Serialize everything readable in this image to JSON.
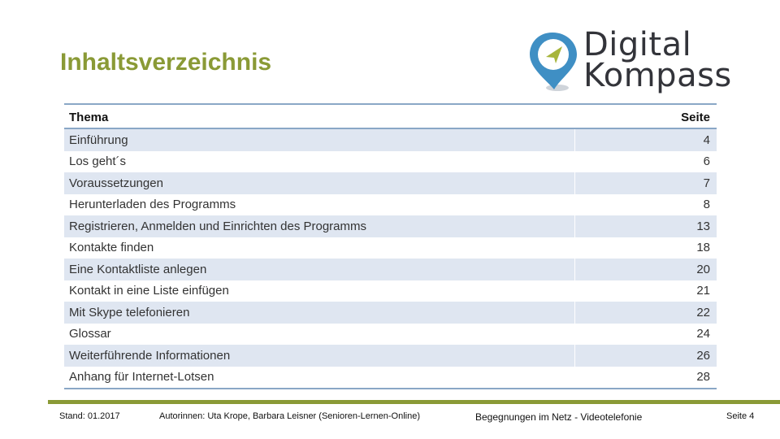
{
  "title": "Inhaltsverzeichnis",
  "logo": {
    "line1": "Digital",
    "line2": "Kompass"
  },
  "table": {
    "head_topic": "Thema",
    "head_page": "Seite",
    "rows": [
      {
        "topic": "Einführung",
        "page": "4"
      },
      {
        "topic": "Los geht´s",
        "page": "6"
      },
      {
        "topic": "Voraussetzungen",
        "page": "7"
      },
      {
        "topic": "Herunterladen des Programms",
        "page": "8"
      },
      {
        "topic": "Registrieren, Anmelden und Einrichten des Programms",
        "page": "13"
      },
      {
        "topic": "Kontakte finden",
        "page": "18"
      },
      {
        "topic": "Eine Kontaktliste anlegen",
        "page": "20"
      },
      {
        "topic": "Kontakt in eine Liste einfügen",
        "page": "21"
      },
      {
        "topic": "Mit Skype telefonieren",
        "page": "22"
      },
      {
        "topic": "Glossar",
        "page": "24"
      },
      {
        "topic": "Weiterführende Informationen",
        "page": "26"
      },
      {
        "topic": "Anhang für Internet-Lotsen",
        "page": "28"
      }
    ]
  },
  "footer": {
    "stand": "Stand: 01.2017",
    "authors": "Autorinnen: Uta Krope, Barbara Leisner (Senioren-Lernen-Online)",
    "subject": "Begegnungen im Netz - Videotelefonie",
    "page": "Seite 4"
  },
  "colors": {
    "accent": "#8a9a36",
    "row_shade": "#dfe6f1",
    "rule": "#8aa7c6",
    "logo_blue": "#3f8fc4",
    "logo_arrow": "#a7b53b"
  }
}
